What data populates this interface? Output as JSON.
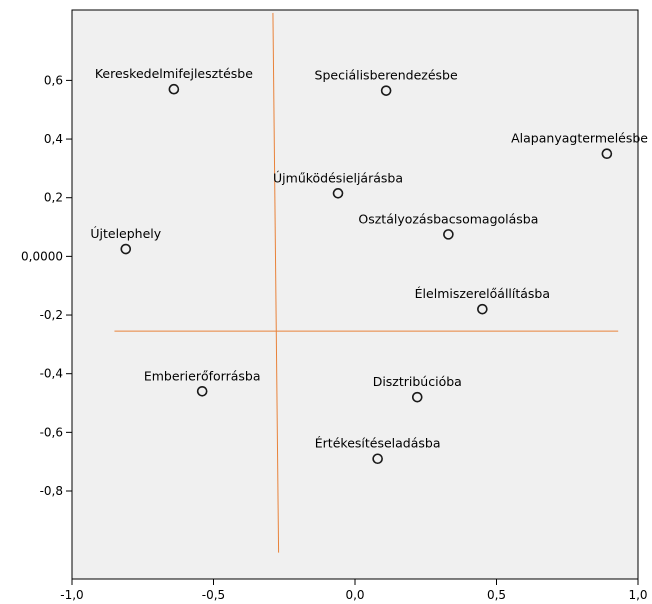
{
  "chart_data": {
    "type": "scatter",
    "title": "",
    "xlabel": "",
    "ylabel": "",
    "xlim": [
      -1.0,
      1.0
    ],
    "ylim": [
      -1.1,
      0.84
    ],
    "x_ticks": [
      -1.0,
      -0.5,
      0.0,
      0.5,
      1.0
    ],
    "x_tick_labels": [
      "-1,0",
      "-0,5",
      "0,0",
      "0,5",
      "1,0"
    ],
    "y_ticks": [
      0.6,
      0.4,
      0.2,
      0.0,
      -0.2,
      -0.4,
      -0.6,
      -0.8
    ],
    "y_tick_labels": [
      "0,6",
      "0,4",
      "0,2",
      "0,0000",
      "-0,2",
      "-0,4",
      "-0,6",
      "-0,8"
    ],
    "grid": false,
    "plot_background": "#f0f0f0",
    "reference_line_color": "#e8823a",
    "reference_lines": [
      {
        "x1": -0.29,
        "y1": 0.83,
        "x2": -0.27,
        "y2": -1.01
      },
      {
        "x1": -0.85,
        "y1": -0.255,
        "x2": 0.93,
        "y2": -0.255
      }
    ],
    "points": [
      {
        "label": "Kereskedelmifejlesztésbe",
        "x": -0.64,
        "y": 0.57
      },
      {
        "label": "Speciálisberendezésbe",
        "x": 0.11,
        "y": 0.565
      },
      {
        "label": "Alapanyagtermelésbe",
        "x": 0.89,
        "y": 0.35
      },
      {
        "label": "Újműködésieljárásba",
        "x": -0.06,
        "y": 0.215
      },
      {
        "label": "Osztályozásbacsomagolásba",
        "x": 0.33,
        "y": 0.075
      },
      {
        "label": "Újtelephely",
        "x": -0.81,
        "y": 0.025
      },
      {
        "label": "Élelmiszerelőállításba",
        "x": 0.45,
        "y": -0.18
      },
      {
        "label": "Emberierőforrásba",
        "x": -0.54,
        "y": -0.46
      },
      {
        "label": "Disztribúcióba",
        "x": 0.22,
        "y": -0.48
      },
      {
        "label": "Értékesítéseladásba",
        "x": 0.08,
        "y": -0.69
      }
    ]
  }
}
